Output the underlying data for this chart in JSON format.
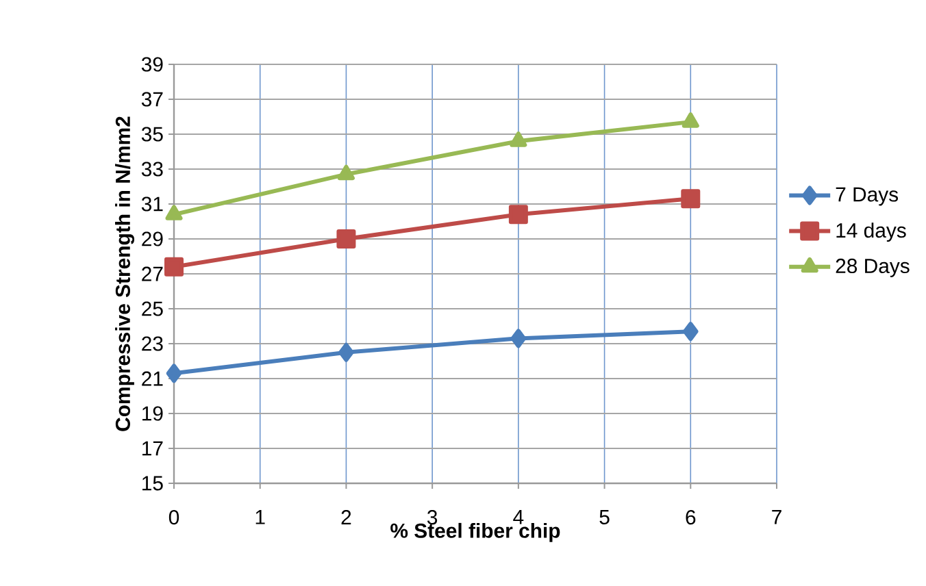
{
  "chart_data": {
    "type": "line",
    "xlabel": "% Steel fiber chip",
    "ylabel": "Compressive Strength in N/mm2",
    "x": [
      0,
      2,
      4,
      6
    ],
    "series": [
      {
        "name": "7 Days",
        "color": "#4a7ebb",
        "marker": "diamond",
        "values": [
          21.3,
          22.5,
          23.3,
          23.7
        ]
      },
      {
        "name": "14 days",
        "color": "#be4b48",
        "marker": "square",
        "values": [
          27.4,
          29.0,
          30.4,
          31.3
        ]
      },
      {
        "name": "28 Days",
        "color": "#98b954",
        "marker": "triangle",
        "values": [
          30.4,
          32.7,
          34.6,
          35.7
        ]
      }
    ],
    "xlim": [
      0,
      7
    ],
    "xticks": [
      0,
      1,
      2,
      3,
      4,
      5,
      6,
      7
    ],
    "ylim": [
      15,
      39
    ],
    "yticks": [
      15,
      17,
      19,
      21,
      23,
      25,
      27,
      29,
      31,
      33,
      35,
      37,
      39
    ],
    "grid": true,
    "legend": "right",
    "line_style": "solid"
  }
}
